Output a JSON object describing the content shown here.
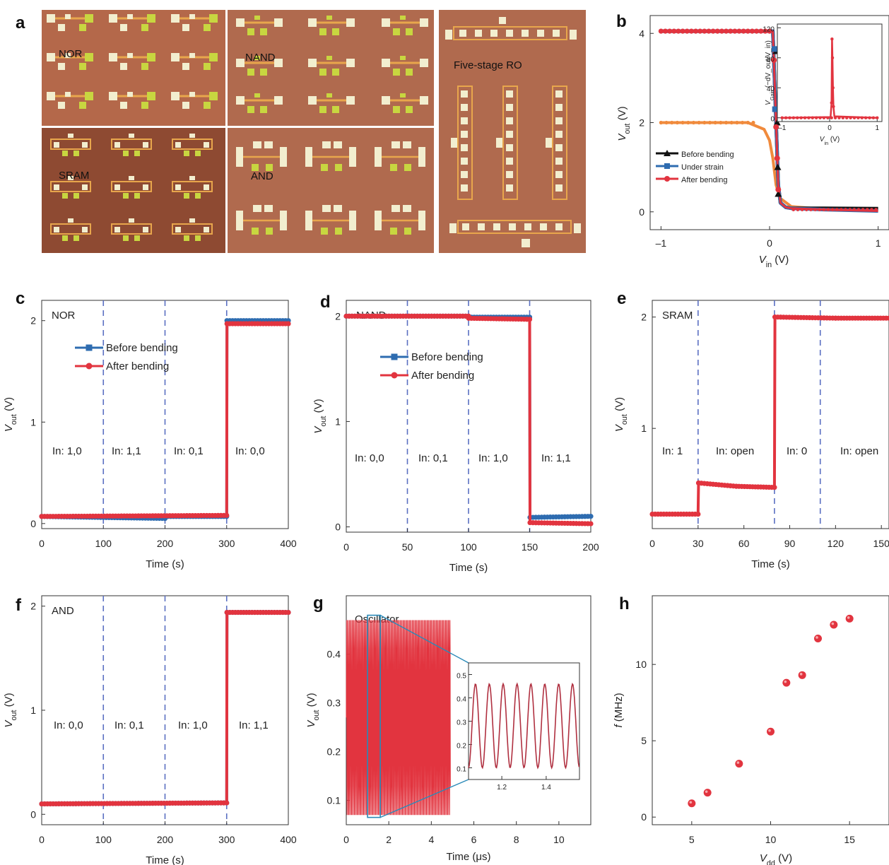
{
  "colors": {
    "blue": "#2e6cb0",
    "red": "#e2343f",
    "black": "#111111",
    "orange": "#f08a3c",
    "dash": "#5a6fc2",
    "photo_bg": "#b4684a",
    "photo_bg_dark": "#8e4a32",
    "pad_light": "#f2eecf",
    "pad_green": "#c8d640",
    "trace": "#e8a64c"
  },
  "panel_labels": {
    "a": "a",
    "b": "b",
    "c": "c",
    "d": "d",
    "e": "e",
    "f": "f",
    "g": "g",
    "h": "h"
  },
  "photo": {
    "nor": "NOR",
    "nand": "NAND",
    "sram": "SRAM",
    "and": "AND",
    "ro": "Five-stage RO"
  },
  "chart_data": [
    {
      "id": "b",
      "type": "line",
      "xlabel": "V_in (V)",
      "ylabel": "V_out (V)",
      "xlim": [
        -1.1,
        1.1
      ],
      "ylim": [
        -0.4,
        4.4
      ],
      "xticks": [
        {
          "v": -1,
          "t": "–1"
        },
        {
          "v": 0,
          "t": "0"
        },
        {
          "v": 1,
          "t": "1"
        }
      ],
      "yticks": [
        {
          "v": 0,
          "t": "0"
        },
        {
          "v": 2,
          "t": "2"
        },
        {
          "v": 4,
          "t": "4"
        }
      ],
      "legend": [
        {
          "name": "Before bending",
          "color": "#111111",
          "marker": "triangle"
        },
        {
          "name": "Under strain",
          "color": "#2e6cb0",
          "marker": "square"
        },
        {
          "name": "After bending",
          "color": "#e2343f",
          "marker": "circle"
        }
      ],
      "series": [
        {
          "name": "Before bending",
          "color": "#111111",
          "x": [
            -1,
            0.03,
            0.06,
            0.08,
            0.1,
            0.15,
            0.2,
            0.5,
            1
          ],
          "y": [
            4.05,
            4.05,
            2.0,
            0.6,
            0.2,
            0.1,
            0.08,
            0.08,
            0.07
          ]
        },
        {
          "name": "Under strain",
          "color": "#2e6cb0",
          "x": [
            -1,
            0.03,
            0.06,
            0.08,
            0.1,
            0.15,
            0.2,
            0.5,
            1
          ],
          "y": [
            4.05,
            4.05,
            2.0,
            0.6,
            0.2,
            0.1,
            0.08,
            0.05,
            0.02
          ]
        },
        {
          "name": "After bending",
          "color": "#e2343f",
          "x": [
            -1,
            0.03,
            0.06,
            0.08,
            0.1,
            0.15,
            0.2,
            0.5,
            1
          ],
          "y": [
            4.05,
            4.05,
            2.0,
            0.6,
            0.2,
            0.1,
            0.08,
            0.05,
            0.02
          ]
        },
        {
          "name": "",
          "color": "#f08a3c",
          "x": [
            -1,
            -0.2,
            -0.05,
            0,
            0.03,
            0.06,
            0.1,
            0.2,
            0.5,
            1
          ],
          "y": [
            2.0,
            2.0,
            1.85,
            1.6,
            1.2,
            0.6,
            0.3,
            0.12,
            0.06,
            0.03
          ]
        }
      ],
      "markers": {
        "Before bending": [
          [
            0.06,
            3.6
          ],
          [
            0.07,
            2.0
          ],
          [
            0.075,
            1.0
          ],
          [
            0.08,
            0.4
          ]
        ],
        "Under strain": [
          [
            0.045,
            3.65
          ],
          [
            0.05,
            2.3
          ]
        ],
        "After bending": [
          [
            0.04,
            3.4
          ],
          [
            0.06,
            1.9
          ],
          [
            0.07,
            1.2
          ],
          [
            0.08,
            0.5
          ]
        ]
      },
      "inset": {
        "xlabel": "V_in (V)",
        "ylabel": "V_Gain (−dV_out/V_in)",
        "xlim": [
          -1.1,
          1.1
        ],
        "ylim": [
          -5,
          125
        ],
        "xticks": [
          {
            "v": -1,
            "t": "–1"
          },
          {
            "v": 0,
            "t": "0"
          },
          {
            "v": 1,
            "t": "1"
          }
        ],
        "yticks": [
          {
            "v": 0,
            "t": "0"
          },
          {
            "v": 40,
            "t": "40"
          },
          {
            "v": 80,
            "t": "80"
          },
          {
            "v": 120,
            "t": "120"
          }
        ],
        "x": [
          -1,
          0.02,
          0.04,
          0.05,
          0.06,
          0.07,
          0.08,
          0.1,
          1
        ],
        "y": [
          0,
          1,
          20,
          105,
          80,
          40,
          15,
          2,
          0
        ]
      }
    },
    {
      "id": "c",
      "type": "line",
      "title": "NOR",
      "xlabel": "Time (s)",
      "ylabel": "V_out (V)",
      "xlim": [
        0,
        400
      ],
      "ylim": [
        -0.05,
        2.2
      ],
      "xticks": [
        0,
        100,
        200,
        300,
        400
      ],
      "yticks": [
        0,
        1,
        2
      ],
      "dividers": [
        100,
        200,
        300
      ],
      "regions": [
        "In: 1,0",
        "In: 1,1",
        "In: 0,1",
        "In: 0,0"
      ],
      "legend": [
        {
          "name": "Before bending",
          "color": "#2e6cb0",
          "marker": "square"
        },
        {
          "name": "After bending",
          "color": "#e2343f",
          "marker": "circle"
        }
      ],
      "series": [
        {
          "name": "Before bending",
          "color": "#2e6cb0",
          "x": [
            0,
            200,
            200.1,
            300,
            300.5,
            400
          ],
          "y": [
            0.07,
            0.05,
            0.07,
            0.07,
            2.0,
            2.0
          ]
        },
        {
          "name": "After bending",
          "color": "#e2343f",
          "x": [
            0,
            300,
            300.5,
            400
          ],
          "y": [
            0.07,
            0.08,
            1.97,
            1.97
          ]
        }
      ]
    },
    {
      "id": "d",
      "type": "line",
      "title": "NAND",
      "xlabel": "Time (s)",
      "ylabel": "V_out (V)",
      "xlim": [
        0,
        200
      ],
      "ylim": [
        -0.05,
        2.15
      ],
      "xticks": [
        0,
        50,
        100,
        150,
        200
      ],
      "yticks": [
        0,
        1,
        2
      ],
      "dividers": [
        50,
        100,
        150
      ],
      "regions": [
        "In: 0,0",
        "In: 0,1",
        "In: 1,0",
        "In: 1,1"
      ],
      "legend": [
        {
          "name": "Before bending",
          "color": "#2e6cb0",
          "marker": "square"
        },
        {
          "name": "After bending",
          "color": "#e2343f",
          "marker": "circle"
        }
      ],
      "series": [
        {
          "name": "Before bending",
          "color": "#2e6cb0",
          "x": [
            0,
            100,
            100.1,
            150,
            150.3,
            200
          ],
          "y": [
            2.0,
            2.0,
            1.99,
            1.99,
            0.09,
            0.1
          ]
        },
        {
          "name": "After bending",
          "color": "#e2343f",
          "x": [
            0,
            100,
            100.1,
            150,
            150.3,
            200
          ],
          "y": [
            2.0,
            2.0,
            1.98,
            1.97,
            0.04,
            0.03
          ]
        }
      ]
    },
    {
      "id": "e",
      "type": "line",
      "title": "SRAM",
      "xlabel": "Time (s)",
      "ylabel": "V_out (V)",
      "xlim": [
        0,
        155
      ],
      "ylim": [
        0.1,
        2.15
      ],
      "xticks": [
        0,
        30,
        60,
        90,
        120,
        150
      ],
      "yticks": [
        1,
        2
      ],
      "dividers": [
        30,
        80,
        110
      ],
      "regions": [
        "In: 1",
        "In: open",
        "In: 0",
        "In: open"
      ],
      "series": [
        {
          "name": "",
          "color": "#e2343f",
          "x": [
            0,
            30,
            30.3,
            55,
            80,
            80.3,
            120,
            155
          ],
          "y": [
            0.23,
            0.23,
            0.51,
            0.48,
            0.47,
            2.0,
            1.99,
            1.99
          ]
        }
      ]
    },
    {
      "id": "f",
      "type": "line",
      "title": "AND",
      "xlabel": "Time (s)",
      "ylabel": "V_out (V)",
      "xlim": [
        0,
        400
      ],
      "ylim": [
        -0.1,
        2.1
      ],
      "xticks": [
        0,
        100,
        200,
        300,
        400
      ],
      "yticks": [
        0,
        1,
        2
      ],
      "dividers": [
        100,
        200,
        300
      ],
      "regions": [
        "In: 0,0",
        "In: 0,1",
        "In: 1,0",
        "In: 1,1"
      ],
      "series": [
        {
          "name": "",
          "color": "#2e6cb0",
          "x": [
            0,
            300,
            300.5,
            400
          ],
          "y": [
            0.1,
            0.11,
            1.94,
            1.94
          ]
        },
        {
          "name": "",
          "color": "#e2343f",
          "x": [
            0,
            300,
            300.5,
            400
          ],
          "y": [
            0.1,
            0.11,
            1.94,
            1.94
          ]
        }
      ]
    },
    {
      "id": "g",
      "type": "line",
      "title": "Oscillator",
      "xlabel": "Time (μs)",
      "ylabel": "V_out (V)",
      "xlim": [
        0,
        11.5
      ],
      "ylim": [
        0.05,
        0.52
      ],
      "xticks": [
        0,
        2,
        4,
        6,
        8,
        10
      ],
      "yticks": [
        0.1,
        0.2,
        0.3,
        0.4
      ],
      "signal": {
        "t_start": 0,
        "t_end": 4.9,
        "period_us": 0.0435,
        "v_min": 0.07,
        "v_max": 0.47
      },
      "zoom_window": [
        1.0,
        1.6
      ],
      "inset": {
        "xlim": [
          1.05,
          1.55
        ],
        "ylim": [
          0.05,
          0.55
        ],
        "xticks": [
          1.2,
          1.4
        ],
        "yticks": [
          0.1,
          0.2,
          0.3,
          0.4,
          0.5
        ],
        "period_us": 0.0625,
        "v_min": 0.1,
        "v_max": 0.46,
        "color": "#b03040"
      }
    },
    {
      "id": "h",
      "type": "scatter",
      "xlabel": "V_dd (V)",
      "ylabel": "f (MHz)",
      "xlim": [
        2.5,
        17.5
      ],
      "ylim": [
        -0.5,
        14.5
      ],
      "xticks": [
        5,
        10,
        15
      ],
      "yticks": [
        0,
        5,
        10
      ],
      "x": [
        5,
        6,
        8,
        10,
        11,
        12,
        13,
        14,
        15
      ],
      "y": [
        0.9,
        1.6,
        3.5,
        5.6,
        8.8,
        9.3,
        11.7,
        12.6,
        13.0
      ]
    }
  ]
}
